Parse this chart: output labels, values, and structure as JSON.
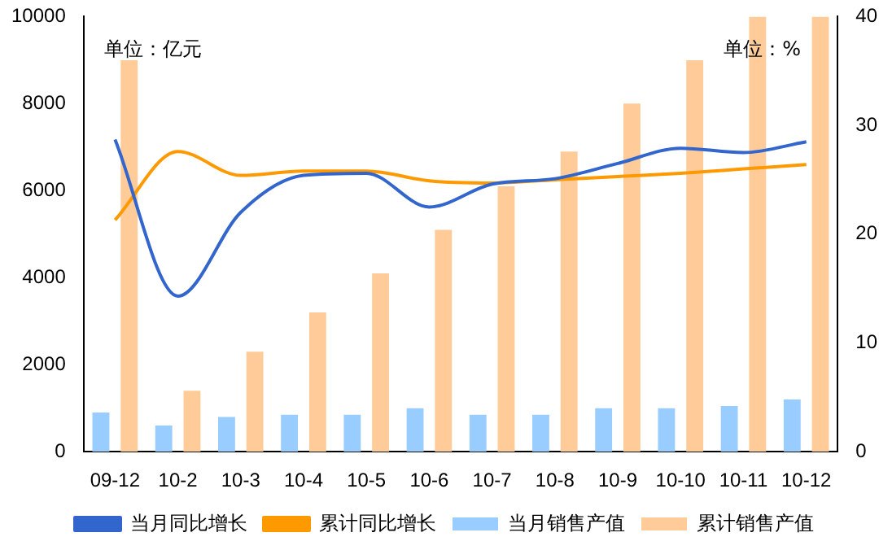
{
  "chart_data": {
    "type": "bar",
    "categories": [
      "09-12",
      "10-2",
      "10-3",
      "10-4",
      "10-5",
      "10-6",
      "10-7",
      "10-8",
      "10-9",
      "10-10",
      "10-11",
      "10-12"
    ],
    "series": [
      {
        "name": "当月销售产值",
        "color": "#99ccff",
        "values": [
          900,
          600,
          800,
          850,
          850,
          1000,
          850,
          850,
          1000,
          1000,
          1050,
          1200
        ]
      },
      {
        "name": "累计销售产值",
        "color": "#ffcc99",
        "values": [
          9000,
          1400,
          2300,
          3200,
          4100,
          5100,
          6100,
          6900,
          8000,
          9000,
          10000,
          10000
        ]
      },
      {
        "name": "当月同比增长",
        "type": "line",
        "axis": "y2",
        "color": "#3366cc",
        "values": [
          28.7,
          14.3,
          22,
          25.4,
          25.6,
          22.5,
          24.6,
          25.1,
          26.5,
          27.9,
          27.5,
          28.5
        ]
      },
      {
        "name": "累计同比增长",
        "type": "line",
        "axis": "y2",
        "color": "#ff9900",
        "values": [
          21.3,
          27.6,
          25.4,
          25.8,
          25.8,
          24.9,
          24.7,
          25,
          25.3,
          25.6,
          26,
          26.4
        ]
      }
    ],
    "ylim": [
      0,
      10000
    ],
    "yticks": [
      0,
      2000,
      4000,
      6000,
      8000,
      10000
    ],
    "y2lim": [
      0,
      40
    ],
    "y2ticks": [
      0,
      10,
      20,
      30,
      40
    ],
    "annotations": [
      "单位：亿元",
      "单位：%"
    ],
    "legend": "bottom",
    "grid": false,
    "marker": "none",
    "line_style": "solid"
  }
}
